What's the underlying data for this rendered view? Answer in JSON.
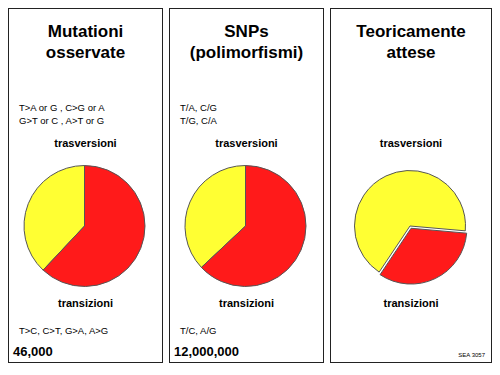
{
  "chart_data": [
    {
      "type": "pie",
      "title": "Mutationi osservate",
      "categories": [
        "trasversioni",
        "transizioni"
      ],
      "values": [
        38,
        62
      ],
      "colors": [
        "#ffff33",
        "#ff1a1a"
      ],
      "top_text": [
        "T>A or G , C>G or A",
        "G>T or C , A>T or G"
      ],
      "bottom_text": "T>C, C>T, G>A, A>G",
      "count": "46,000"
    },
    {
      "type": "pie",
      "title": "SNPs (polimorfismi)",
      "categories": [
        "trasversioni",
        "transizioni"
      ],
      "values": [
        37,
        63
      ],
      "colors": [
        "#ffff33",
        "#ff1a1a"
      ],
      "top_text": [
        "T/A, C/G",
        "T/G, C/A"
      ],
      "bottom_text": "T/C, A/G",
      "count": "12,000,000"
    },
    {
      "type": "pie",
      "title": "Teoricamente attese",
      "categories": [
        "trasversioni",
        "transizioni"
      ],
      "values": [
        67,
        33
      ],
      "colors": [
        "#ffff33",
        "#ff1a1a"
      ]
    }
  ],
  "note": "SEA 3057"
}
